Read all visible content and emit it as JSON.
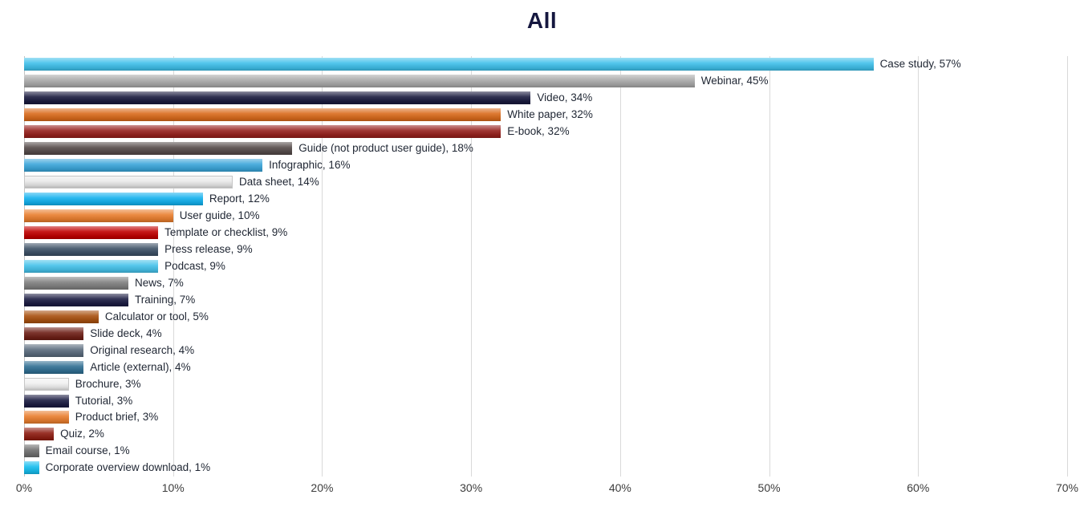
{
  "chart_data": {
    "type": "bar",
    "orientation": "horizontal",
    "title": "All",
    "xlabel": "",
    "ylabel": "",
    "xlim": [
      0,
      70
    ],
    "x_ticks": [
      "0%",
      "10%",
      "20%",
      "30%",
      "40%",
      "50%",
      "60%",
      "70%"
    ],
    "grid": "vertical",
    "legend": "none",
    "categories": [
      "Case study",
      "Webinar",
      "Video",
      "White paper",
      "E-book",
      "Guide (not product user guide)",
      "Infographic",
      "Data sheet",
      "Report",
      "User guide",
      "Template or checklist",
      "Press release",
      "Podcast",
      "News",
      "Training",
      "Calculator or tool",
      "Slide deck",
      "Original research",
      "Article (external)",
      "Brochure",
      "Tutorial",
      "Product brief",
      "Quiz",
      "Email course",
      "Corporate overview download"
    ],
    "values": [
      57,
      45,
      34,
      32,
      32,
      18,
      16,
      14,
      12,
      10,
      9,
      9,
      9,
      7,
      7,
      5,
      4,
      4,
      4,
      3,
      3,
      3,
      2,
      1,
      1
    ],
    "labels": [
      "Case study, 57%",
      "Webinar, 45%",
      "Video, 34%",
      "White paper, 32%",
      "E-book, 32%",
      "Guide (not product user guide), 18%",
      "Infographic, 16%",
      "Data sheet, 14%",
      "Report, 12%",
      "User guide, 10%",
      "Template or checklist, 9%",
      "Press release, 9%",
      "Podcast, 9%",
      "News, 7%",
      "Training, 7%",
      "Calculator or tool, 5%",
      "Slide deck, 4%",
      "Original research, 4%",
      "Article (external), 4%",
      "Brochure, 3%",
      "Tutorial, 3%",
      "Product brief, 3%",
      "Quiz, 2%",
      "Email course, 1%",
      "Corporate overview download, 1%"
    ],
    "bar_colors": [
      "#3fc0ea",
      "#a8a8a8",
      "#191a3e",
      "#d96a1b",
      "#96201c",
      "#544a49",
      "#3aa5d9",
      "#e9e9e9",
      "#12b1ee",
      "#e97e2e",
      "#c00000",
      "#3d5166",
      "#45c2ea",
      "#7f7f7f",
      "#1b1c42",
      "#a8500e",
      "#6e1f16",
      "#5a6b7d",
      "#2f6e92",
      "#f0f0f0",
      "#1b1c42",
      "#e97e2e",
      "#8f1d12",
      "#6f6f6f",
      "#15bdee"
    ],
    "title_color": "#15173f",
    "gridline_color": "#d9d9d9",
    "label_color": "#1f2633"
  }
}
